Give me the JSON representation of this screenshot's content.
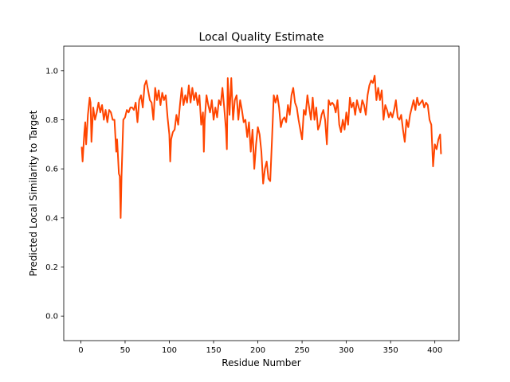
{
  "chart_data": {
    "type": "line",
    "title": "Local Quality Estimate",
    "x_label": "Residue Number",
    "y_label": "Predicted Local Similarity to Target",
    "color": "#ff4500",
    "xlim": [
      -19.3,
      427.3
    ],
    "ylim": [
      -0.1,
      1.1
    ],
    "xticks": [
      0,
      50,
      100,
      150,
      200,
      250,
      300,
      350,
      400
    ],
    "yticks": [
      {
        "value": 0,
        "label": "0.0"
      },
      0.2,
      0.4,
      0.6,
      0.8,
      {
        "value": 1,
        "label": "1.0"
      }
    ],
    "x": [
      1,
      2,
      4,
      5,
      6,
      8,
      10,
      11,
      12,
      14,
      16,
      18,
      20,
      22,
      24,
      26,
      28,
      30,
      32,
      34,
      36,
      38,
      40,
      41,
      42,
      43,
      44,
      45,
      46,
      48,
      50,
      52,
      54,
      56,
      58,
      60,
      62,
      64,
      66,
      68,
      70,
      72,
      74,
      76,
      78,
      80,
      82,
      84,
      86,
      88,
      90,
      92,
      94,
      96,
      98,
      100,
      101,
      102,
      104,
      106,
      108,
      110,
      112,
      114,
      116,
      118,
      120,
      122,
      124,
      126,
      128,
      130,
      132,
      134,
      136,
      138,
      139,
      140,
      142,
      144,
      146,
      148,
      150,
      152,
      154,
      156,
      158,
      160,
      162,
      164,
      165,
      166,
      168,
      170,
      172,
      174,
      176,
      178,
      180,
      182,
      184,
      186,
      188,
      190,
      192,
      194,
      196,
      198,
      200,
      202,
      204,
      206,
      208,
      210,
      212,
      214,
      216,
      218,
      220,
      222,
      224,
      226,
      228,
      230,
      232,
      234,
      236,
      238,
      240,
      242,
      244,
      246,
      248,
      250,
      252,
      254,
      256,
      258,
      260,
      262,
      264,
      266,
      268,
      270,
      272,
      274,
      276,
      278,
      280,
      282,
      284,
      286,
      288,
      290,
      292,
      294,
      296,
      298,
      300,
      302,
      304,
      306,
      308,
      310,
      312,
      314,
      316,
      318,
      320,
      322,
      324,
      326,
      328,
      330,
      332,
      334,
      336,
      338,
      340,
      342,
      344,
      346,
      348,
      350,
      352,
      354,
      356,
      358,
      360,
      362,
      364,
      366,
      368,
      370,
      372,
      374,
      376,
      378,
      380,
      382,
      384,
      386,
      388,
      390,
      392,
      394,
      396,
      398,
      400,
      402,
      404,
      406,
      407
    ],
    "values": [
      0.69,
      0.63,
      0.75,
      0.79,
      0.7,
      0.82,
      0.89,
      0.87,
      0.71,
      0.85,
      0.8,
      0.83,
      0.87,
      0.83,
      0.86,
      0.8,
      0.84,
      0.79,
      0.84,
      0.83,
      0.8,
      0.8,
      0.67,
      0.72,
      0.65,
      0.58,
      0.57,
      0.4,
      0.57,
      0.8,
      0.81,
      0.84,
      0.83,
      0.85,
      0.85,
      0.84,
      0.87,
      0.79,
      0.88,
      0.9,
      0.85,
      0.94,
      0.96,
      0.92,
      0.88,
      0.87,
      0.8,
      0.93,
      0.88,
      0.92,
      0.86,
      0.91,
      0.88,
      0.9,
      0.81,
      0.74,
      0.63,
      0.72,
      0.75,
      0.76,
      0.82,
      0.78,
      0.86,
      0.93,
      0.86,
      0.9,
      0.87,
      0.94,
      0.87,
      0.93,
      0.88,
      0.91,
      0.86,
      0.9,
      0.78,
      0.83,
      0.67,
      0.8,
      0.9,
      0.86,
      0.83,
      0.88,
      0.8,
      0.85,
      0.81,
      0.88,
      0.86,
      0.93,
      0.85,
      0.76,
      0.68,
      0.97,
      0.82,
      0.97,
      0.8,
      0.88,
      0.9,
      0.8,
      0.88,
      0.84,
      0.79,
      0.8,
      0.73,
      0.79,
      0.67,
      0.76,
      0.6,
      0.7,
      0.77,
      0.74,
      0.67,
      0.54,
      0.6,
      0.63,
      0.56,
      0.55,
      0.72,
      0.9,
      0.87,
      0.9,
      0.85,
      0.77,
      0.8,
      0.81,
      0.79,
      0.86,
      0.82,
      0.9,
      0.93,
      0.87,
      0.85,
      0.8,
      0.76,
      0.72,
      0.84,
      0.82,
      0.9,
      0.85,
      0.8,
      0.89,
      0.8,
      0.85,
      0.76,
      0.78,
      0.82,
      0.84,
      0.8,
      0.7,
      0.88,
      0.86,
      0.87,
      0.86,
      0.83,
      0.88,
      0.78,
      0.75,
      0.8,
      0.76,
      0.83,
      0.78,
      0.89,
      0.85,
      0.87,
      0.82,
      0.88,
      0.85,
      0.83,
      0.88,
      0.86,
      0.82,
      0.9,
      0.94,
      0.96,
      0.95,
      0.98,
      0.88,
      0.93,
      0.88,
      0.92,
      0.8,
      0.86,
      0.84,
      0.81,
      0.83,
      0.81,
      0.84,
      0.88,
      0.81,
      0.8,
      0.82,
      0.76,
      0.71,
      0.8,
      0.77,
      0.82,
      0.85,
      0.88,
      0.84,
      0.89,
      0.86,
      0.87,
      0.88,
      0.85,
      0.87,
      0.86,
      0.8,
      0.78,
      0.61,
      0.7,
      0.68,
      0.72,
      0.74,
      0.66
    ]
  }
}
